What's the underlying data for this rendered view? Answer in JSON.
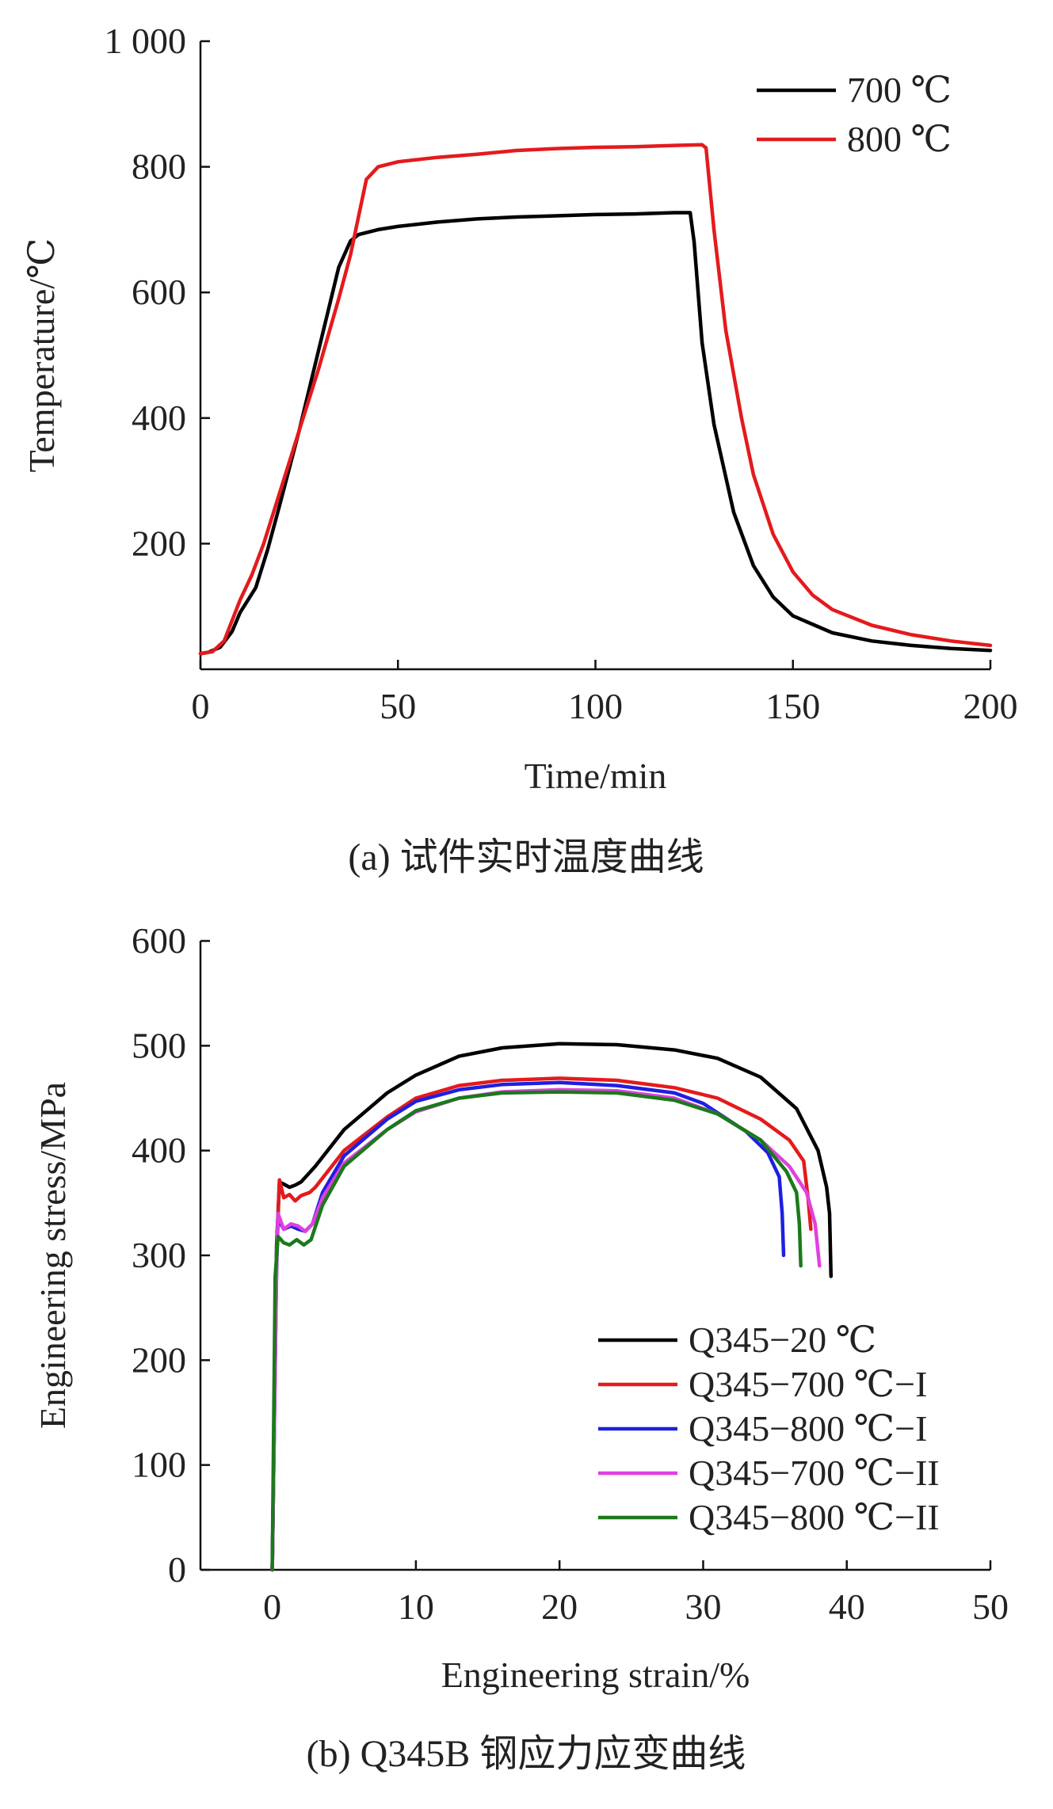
{
  "chart_data": [
    {
      "type": "line",
      "xlabel": "Time/min",
      "ylabel": "Temperature/℃",
      "caption": "(a) 试件实时温度曲线",
      "xlim": [
        0,
        200
      ],
      "ylim": [
        0,
        1000
      ],
      "xticks": [
        0,
        50,
        100,
        150,
        200
      ],
      "xtick_labels": [
        "0",
        "50",
        "100",
        "150",
        "200"
      ],
      "yticks": [
        200,
        400,
        600,
        800,
        1000
      ],
      "ytick_labels": [
        "200",
        "400",
        "600",
        "800",
        "1 000"
      ],
      "legend_position": "top-right",
      "series": [
        {
          "name": "700 ℃",
          "color": "#000000",
          "points": [
            [
              0,
              25
            ],
            [
              2,
              27
            ],
            [
              5,
              35
            ],
            [
              8,
              60
            ],
            [
              10,
              90
            ],
            [
              14,
              130
            ],
            [
              17,
              190
            ],
            [
              20,
              260
            ],
            [
              25,
              380
            ],
            [
              30,
              510
            ],
            [
              35,
              640
            ],
            [
              38,
              682
            ],
            [
              40,
              692
            ],
            [
              45,
              700
            ],
            [
              50,
              705
            ],
            [
              60,
              712
            ],
            [
              70,
              717
            ],
            [
              80,
              720
            ],
            [
              90,
              722
            ],
            [
              100,
              724
            ],
            [
              110,
              725
            ],
            [
              120,
              727
            ],
            [
              124,
              727
            ],
            [
              125,
              680
            ],
            [
              127,
              520
            ],
            [
              130,
              390
            ],
            [
              135,
              250
            ],
            [
              140,
              165
            ],
            [
              145,
              115
            ],
            [
              150,
              85
            ],
            [
              160,
              58
            ],
            [
              170,
              45
            ],
            [
              180,
              38
            ],
            [
              190,
              33
            ],
            [
              200,
              30
            ]
          ]
        },
        {
          "name": "800 ℃",
          "color": "#e41a1c",
          "points": [
            [
              0,
              25
            ],
            [
              3,
              28
            ],
            [
              6,
              45
            ],
            [
              10,
              110
            ],
            [
              13,
              150
            ],
            [
              16,
              200
            ],
            [
              20,
              280
            ],
            [
              25,
              380
            ],
            [
              30,
              480
            ],
            [
              35,
              590
            ],
            [
              38,
              660
            ],
            [
              40,
              720
            ],
            [
              42,
              780
            ],
            [
              45,
              800
            ],
            [
              50,
              808
            ],
            [
              60,
              815
            ],
            [
              70,
              820
            ],
            [
              80,
              826
            ],
            [
              90,
              829
            ],
            [
              100,
              831
            ],
            [
              110,
              832
            ],
            [
              120,
              834
            ],
            [
              127,
              835
            ],
            [
              128,
              830
            ],
            [
              130,
              700
            ],
            [
              133,
              540
            ],
            [
              137,
              400
            ],
            [
              140,
              310
            ],
            [
              145,
              215
            ],
            [
              150,
              155
            ],
            [
              155,
              118
            ],
            [
              160,
              95
            ],
            [
              170,
              70
            ],
            [
              180,
              55
            ],
            [
              190,
              45
            ],
            [
              200,
              38
            ]
          ]
        }
      ]
    },
    {
      "type": "line",
      "xlabel": "Engineering strain/%",
      "ylabel": "Engineering stress/MPa",
      "caption": "(b) Q345B 钢应力应变曲线",
      "xlim": [
        -5,
        50
      ],
      "ylim": [
        0,
        600
      ],
      "xticks": [
        0,
        10,
        20,
        30,
        40,
        50
      ],
      "xtick_labels": [
        "0",
        "10",
        "20",
        "30",
        "40",
        "50"
      ],
      "yticks": [
        0,
        100,
        200,
        300,
        400,
        500,
        600
      ],
      "ytick_labels": [
        "0",
        "100",
        "200",
        "300",
        "400",
        "500",
        "600"
      ],
      "legend_position": "bottom-right",
      "series": [
        {
          "name": "Q345−20 ℃",
          "color": "#000000",
          "points": [
            [
              0,
              0
            ],
            [
              0.3,
              310
            ],
            [
              0.5,
              370
            ],
            [
              0.8,
              368
            ],
            [
              1.2,
              365
            ],
            [
              1.6,
              367
            ],
            [
              2,
              370
            ],
            [
              3,
              385
            ],
            [
              5,
              420
            ],
            [
              8,
              455
            ],
            [
              10,
              472
            ],
            [
              13,
              490
            ],
            [
              16,
              498
            ],
            [
              20,
              502
            ],
            [
              24,
              501
            ],
            [
              28,
              496
            ],
            [
              31,
              488
            ],
            [
              34,
              470
            ],
            [
              36.5,
              440
            ],
            [
              38,
              400
            ],
            [
              38.6,
              365
            ],
            [
              38.8,
              340
            ],
            [
              38.9,
              280
            ]
          ]
        },
        {
          "name": "Q345−700 ℃−I",
          "color": "#e41a1c",
          "points": [
            [
              0,
              0
            ],
            [
              0.3,
              300
            ],
            [
              0.5,
              372
            ],
            [
              0.8,
              355
            ],
            [
              1.2,
              358
            ],
            [
              1.6,
              352
            ],
            [
              2,
              357
            ],
            [
              2.6,
              360
            ],
            [
              3,
              365
            ],
            [
              5,
              400
            ],
            [
              8,
              432
            ],
            [
              10,
              450
            ],
            [
              13,
              462
            ],
            [
              16,
              467
            ],
            [
              20,
              469
            ],
            [
              24,
              467
            ],
            [
              28,
              460
            ],
            [
              31,
              450
            ],
            [
              34,
              430
            ],
            [
              36,
              410
            ],
            [
              37,
              390
            ],
            [
              37.3,
              355
            ],
            [
              37.5,
              325
            ]
          ]
        },
        {
          "name": "Q345−800 ℃−I",
          "color": "#1f1fe0",
          "points": [
            [
              0,
              0
            ],
            [
              0.3,
              290
            ],
            [
              0.4,
              335
            ],
            [
              0.8,
              325
            ],
            [
              1.3,
              328
            ],
            [
              1.8,
              325
            ],
            [
              2.3,
              323
            ],
            [
              2.8,
              330
            ],
            [
              3.5,
              360
            ],
            [
              5,
              395
            ],
            [
              8,
              430
            ],
            [
              10,
              447
            ],
            [
              13,
              458
            ],
            [
              16,
              463
            ],
            [
              20,
              465
            ],
            [
              24,
              462
            ],
            [
              28,
              455
            ],
            [
              30,
              445
            ],
            [
              33,
              418
            ],
            [
              34.5,
              398
            ],
            [
              35.3,
              375
            ],
            [
              35.5,
              340
            ],
            [
              35.6,
              300
            ]
          ]
        },
        {
          "name": "Q345−700 ℃−II",
          "color": "#e040e0",
          "points": [
            [
              0,
              0
            ],
            [
              0.3,
              295
            ],
            [
              0.4,
              340
            ],
            [
              0.8,
              325
            ],
            [
              1.3,
              330
            ],
            [
              1.8,
              328
            ],
            [
              2.3,
              323
            ],
            [
              2.8,
              330
            ],
            [
              3.5,
              355
            ],
            [
              5,
              388
            ],
            [
              8,
              420
            ],
            [
              10,
              437
            ],
            [
              13,
              450
            ],
            [
              16,
              456
            ],
            [
              20,
              458
            ],
            [
              24,
              457
            ],
            [
              28,
              450
            ],
            [
              31,
              435
            ],
            [
              34,
              410
            ],
            [
              36,
              385
            ],
            [
              37.2,
              360
            ],
            [
              37.8,
              330
            ],
            [
              38.1,
              290
            ]
          ]
        },
        {
          "name": "Q345−800 ℃−II",
          "color": "#1a7a1a",
          "points": [
            [
              0,
              0
            ],
            [
              0.2,
              280
            ],
            [
              0.4,
              318
            ],
            [
              0.8,
              312
            ],
            [
              1.2,
              310
            ],
            [
              1.7,
              315
            ],
            [
              2.2,
              310
            ],
            [
              2.7,
              315
            ],
            [
              3.5,
              348
            ],
            [
              5,
              385
            ],
            [
              8,
              420
            ],
            [
              10,
              438
            ],
            [
              13,
              450
            ],
            [
              16,
              455
            ],
            [
              20,
              456
            ],
            [
              24,
              455
            ],
            [
              28,
              448
            ],
            [
              31,
              435
            ],
            [
              34,
              410
            ],
            [
              35.8,
              380
            ],
            [
              36.5,
              360
            ],
            [
              36.7,
              330
            ],
            [
              36.8,
              290
            ]
          ]
        }
      ]
    }
  ]
}
